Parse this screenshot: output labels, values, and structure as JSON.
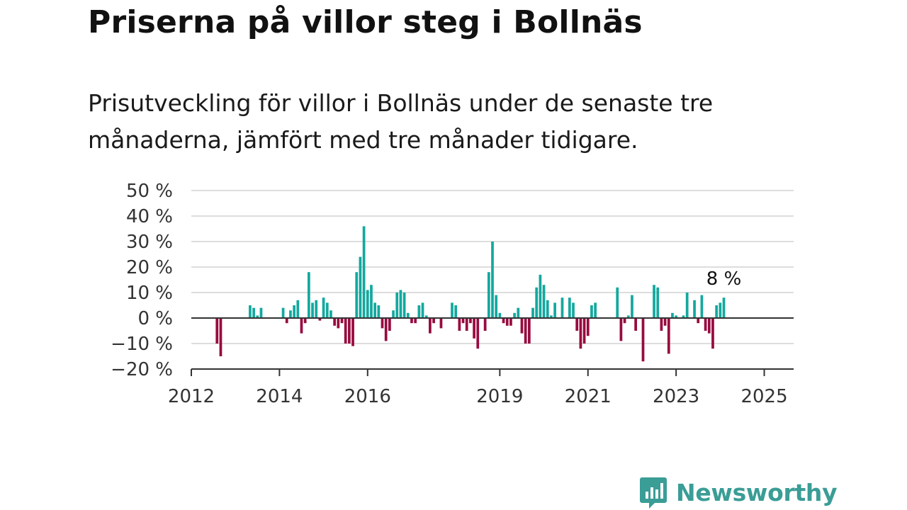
{
  "title": "Priserna på villor steg i Bollnäs",
  "subtitle": "Prisutveckling för villor i Bollnäs under de senaste tre månaderna, jämfört med tre månader tidigare.",
  "brand": {
    "name": "Newsworthy",
    "color": "#3a9d96",
    "icon": "newsworthy-bar-chart-icon"
  },
  "colors": {
    "positive": "#14a89e",
    "negative": "#980a3f",
    "grid": "#dddddd",
    "axis": "#333333"
  },
  "chart_data": {
    "type": "bar",
    "title": "Priserna på villor steg i Bollnäs",
    "ylabel": "",
    "xlabel": "",
    "ylim": [
      -20,
      50
    ],
    "y_ticks": [
      -20,
      -10,
      0,
      10,
      20,
      30,
      40,
      50
    ],
    "y_tick_labels": [
      "−20 %",
      "−10 %",
      "0 %",
      "10 %",
      "20 %",
      "30 %",
      "40 %",
      "50 %"
    ],
    "x_ticks": [
      "2012",
      "2014",
      "2016",
      "2019",
      "2021",
      "2023",
      "2025"
    ],
    "x_tick_months": [
      0,
      24,
      48,
      84,
      108,
      132,
      156
    ],
    "x_range_months": [
      0,
      164
    ],
    "grid": true,
    "annotation": {
      "text": "8 %",
      "target": "last"
    },
    "series": [
      {
        "values": [
          [
            7,
            -10
          ],
          [
            8,
            -15
          ],
          [
            16,
            5
          ],
          [
            17,
            4
          ],
          [
            18,
            1
          ],
          [
            19,
            4
          ],
          [
            25,
            4
          ],
          [
            26,
            -2
          ],
          [
            27,
            3
          ],
          [
            28,
            5
          ],
          [
            29,
            7
          ],
          [
            30,
            -6
          ],
          [
            31,
            -2
          ],
          [
            32,
            18
          ],
          [
            33,
            6
          ],
          [
            34,
            7
          ],
          [
            35,
            -1
          ],
          [
            36,
            8
          ],
          [
            37,
            6
          ],
          [
            38,
            3
          ],
          [
            39,
            -3
          ],
          [
            40,
            -4
          ],
          [
            41,
            -2
          ],
          [
            42,
            -10
          ],
          [
            43,
            -10
          ],
          [
            44,
            -11
          ],
          [
            45,
            18
          ],
          [
            46,
            24
          ],
          [
            47,
            36
          ],
          [
            48,
            11
          ],
          [
            49,
            13
          ],
          [
            50,
            6
          ],
          [
            51,
            5
          ],
          [
            52,
            -4
          ],
          [
            53,
            -9
          ],
          [
            54,
            -5
          ],
          [
            55,
            3
          ],
          [
            56,
            10
          ],
          [
            57,
            11
          ],
          [
            58,
            10
          ],
          [
            59,
            2
          ],
          [
            60,
            -2
          ],
          [
            61,
            -2
          ],
          [
            62,
            5
          ],
          [
            63,
            6
          ],
          [
            64,
            1
          ],
          [
            65,
            -6
          ],
          [
            66,
            -2
          ],
          [
            68,
            -4
          ],
          [
            71,
            6
          ],
          [
            72,
            5
          ],
          [
            73,
            -5
          ],
          [
            74,
            -2
          ],
          [
            75,
            -5
          ],
          [
            76,
            -2
          ],
          [
            77,
            -8
          ],
          [
            78,
            -12
          ],
          [
            80,
            -5
          ],
          [
            81,
            18
          ],
          [
            82,
            30
          ],
          [
            83,
            9
          ],
          [
            84,
            2
          ],
          [
            85,
            -2
          ],
          [
            86,
            -3
          ],
          [
            87,
            -3
          ],
          [
            88,
            2
          ],
          [
            89,
            4
          ],
          [
            90,
            -6
          ],
          [
            91,
            -10
          ],
          [
            92,
            -10
          ],
          [
            93,
            4
          ],
          [
            94,
            12
          ],
          [
            95,
            17
          ],
          [
            96,
            13
          ],
          [
            97,
            7
          ],
          [
            98,
            1
          ],
          [
            99,
            6
          ],
          [
            101,
            8
          ],
          [
            103,
            8
          ],
          [
            104,
            6
          ],
          [
            105,
            -5
          ],
          [
            106,
            -12
          ],
          [
            107,
            -10
          ],
          [
            108,
            -7
          ],
          [
            109,
            5
          ],
          [
            110,
            6
          ],
          [
            116,
            12
          ],
          [
            117,
            -9
          ],
          [
            118,
            -2
          ],
          [
            119,
            1
          ],
          [
            120,
            9
          ],
          [
            121,
            -5
          ],
          [
            123,
            -17
          ],
          [
            126,
            13
          ],
          [
            127,
            12
          ],
          [
            128,
            -5
          ],
          [
            129,
            -3
          ],
          [
            130,
            -14
          ],
          [
            131,
            2
          ],
          [
            132,
            1
          ],
          [
            134,
            1
          ],
          [
            135,
            10
          ],
          [
            137,
            7
          ],
          [
            138,
            -2
          ],
          [
            139,
            9
          ],
          [
            140,
            -5
          ],
          [
            141,
            -6
          ],
          [
            142,
            -12
          ],
          [
            143,
            5
          ],
          [
            144,
            6
          ],
          [
            145,
            8
          ]
        ]
      }
    ]
  }
}
